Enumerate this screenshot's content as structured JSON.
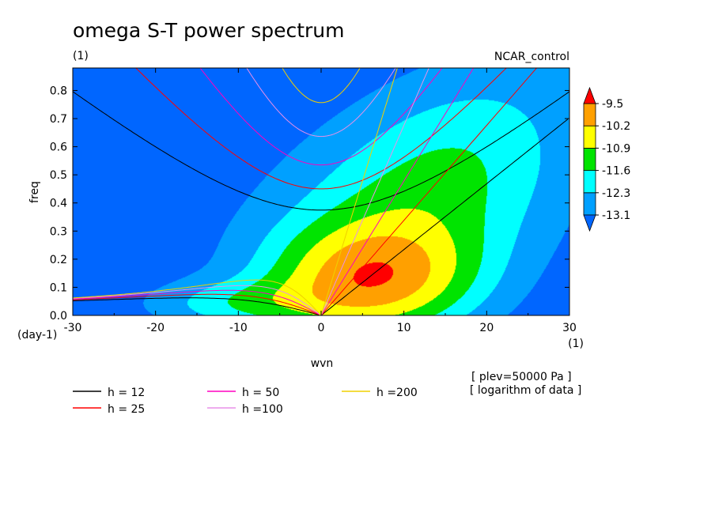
{
  "header": {
    "title": "omega S-T power spectrum",
    "subtitle": "(1)",
    "case_name": "NCAR_control"
  },
  "chart_data": {
    "type": "heatmap",
    "xlabel": "wvn",
    "ylabel": "freq",
    "x_unit": "(1)",
    "y_unit": "(day-1)",
    "xlim": [
      -30,
      30
    ],
    "ylim": [
      0,
      0.88
    ],
    "x_ticks": [
      -30,
      -20,
      -10,
      0,
      10,
      20,
      30
    ],
    "y_ticks": [
      0.0,
      0.1,
      0.2,
      0.3,
      0.4,
      0.5,
      0.6,
      0.7,
      0.8
    ],
    "y_tick_labels": [
      "0.0",
      "0.1",
      "0.2",
      "0.3",
      "0.4",
      "0.5",
      "0.6",
      "0.7",
      "0.8"
    ],
    "contour_levels": [
      -13.1,
      -12.3,
      -11.6,
      -10.9,
      -10.2,
      -9.5
    ],
    "level_labels": [
      "-13.1",
      "-12.3",
      "-11.6",
      "-10.9",
      "-10.2",
      "-9.5"
    ],
    "fill_colors": [
      "#0066ff",
      "#00a0ff",
      "#00ffff",
      "#00e400",
      "#ffff00",
      "#ffa000",
      "#ff0000"
    ],
    "dispersion_curves": [
      {
        "label": "h = 12",
        "h": 12,
        "color": "#000000"
      },
      {
        "label": "h = 25",
        "h": 25,
        "color": "#ff0000"
      },
      {
        "label": "h = 50",
        "h": 50,
        "color": "#ff00c0"
      },
      {
        "label": "h =100",
        "h": 100,
        "color": "#e890e8"
      },
      {
        "label": "h =200",
        "h": 200,
        "color": "#f0d000"
      }
    ],
    "annotations": [
      "[ plev=50000 Pa ]",
      "[ logarithm of data ]"
    ]
  }
}
